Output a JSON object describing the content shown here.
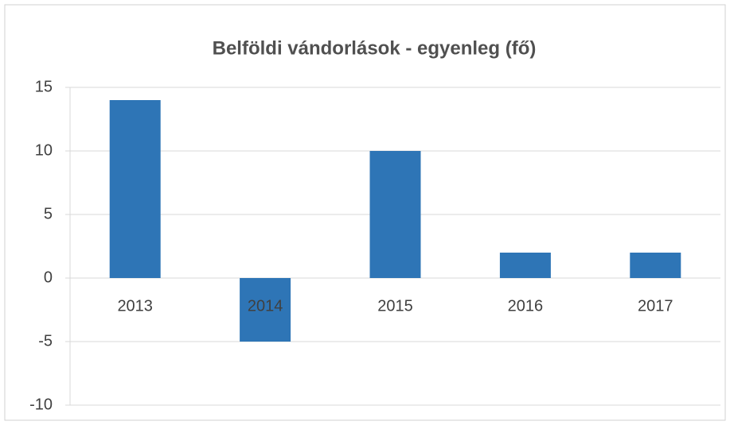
{
  "chart_data": {
    "type": "bar",
    "title": "Belföldi vándorlások - egyenleg (fő)",
    "categories": [
      "2013",
      "2014",
      "2015",
      "2016",
      "2017"
    ],
    "values": [
      14,
      -5,
      10,
      2,
      2
    ],
    "color": "#2e75b6",
    "ylim": [
      -10,
      15
    ],
    "yticks": [
      -10,
      -5,
      0,
      5,
      10,
      15
    ],
    "grid": true
  }
}
